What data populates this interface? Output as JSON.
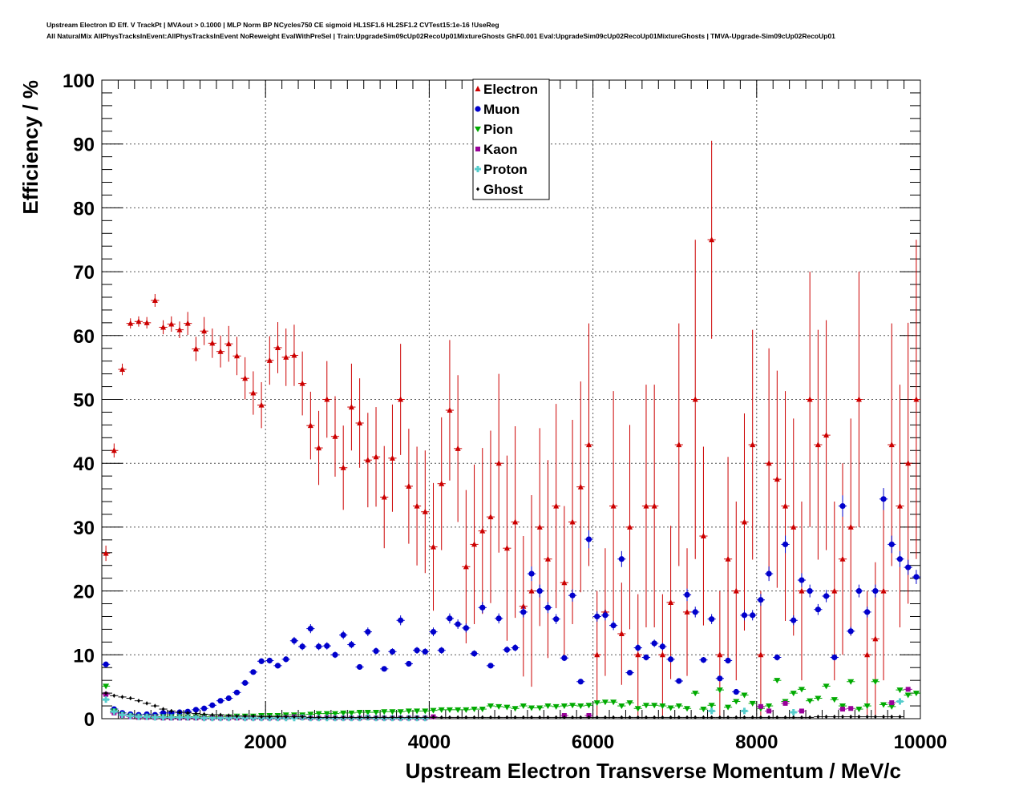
{
  "header": {
    "line1": "Upstream Electron ID Eff. V TrackPt | MVAout > 0.1000 | MLP Norm BP NCycles750 CE sigmoid HL1SF1.6 HL2SF1.2 CVTest15:1e-16 !UseReg",
    "line2": "All NaturalMix AllPhysTracksInEvent:AllPhysTracksInEvent NoReweight EvalWithPreSel | Train:UpgradeSim09cUp02RecoUp01MixtureGhosts GhF0.001 Eval:UpgradeSim09cUp02RecoUp01MixtureGhosts | TMVA-Upgrade-Sim09cUp02RecoUp01"
  },
  "chart_data": {
    "type": "scatter",
    "title": "",
    "xlabel": "Upstream Electron Transverse Momentum / MeV/c",
    "ylabel": "Efficiency / %",
    "xlim": [
      0,
      10000
    ],
    "ylim": [
      0,
      100
    ],
    "xticks": [
      2000,
      4000,
      6000,
      8000,
      10000
    ],
    "yticks": [
      0,
      10,
      20,
      30,
      40,
      50,
      60,
      70,
      80,
      90,
      100
    ],
    "grid": true,
    "legend_position": "top-center",
    "bin_width": 100,
    "series": [
      {
        "name": "Electron",
        "marker": "triangle-up",
        "color": "#cc0000",
        "x": [
          50,
          150,
          250,
          350,
          450,
          550,
          650,
          750,
          850,
          950,
          1050,
          1150,
          1250,
          1350,
          1450,
          1550,
          1650,
          1750,
          1850,
          1950,
          2050,
          2150,
          2250,
          2350,
          2450,
          2550,
          2650,
          2750,
          2850,
          2950,
          3050,
          3150,
          3250,
          3350,
          3450,
          3550,
          3650,
          3750,
          3850,
          3950,
          4050,
          4150,
          4250,
          4350,
          4450,
          4550,
          4650,
          4750,
          4850,
          4950,
          5050,
          5150,
          5250,
          5350,
          5450,
          5550,
          5650,
          5750,
          5850,
          5950,
          6050,
          6150,
          6250,
          6350,
          6450,
          6550,
          6650,
          6750,
          6850,
          6950,
          7050,
          7150,
          7250,
          7350,
          7450,
          7550,
          7650,
          7750,
          7850,
          7950,
          8050,
          8150,
          8250,
          8350,
          8450,
          8550,
          8650,
          8750,
          8850,
          8950,
          9050,
          9150,
          9250,
          9350,
          9450,
          9550,
          9650,
          9750,
          9850,
          9950
        ],
        "y": [
          25.9,
          42.0,
          54.7,
          61.9,
          62.2,
          62.0,
          65.5,
          61.3,
          61.8,
          60.9,
          61.9,
          57.9,
          60.7,
          58.8,
          57.5,
          58.7,
          56.8,
          53.3,
          51.0,
          49.1,
          56.1,
          58.1,
          56.6,
          56.9,
          52.5,
          45.9,
          42.4,
          50.0,
          44.2,
          39.3,
          48.8,
          46.3,
          40.5,
          41.0,
          34.7,
          40.8,
          50.0,
          36.4,
          33.3,
          32.4,
          26.9,
          36.8,
          48.3,
          42.3,
          23.8,
          27.3,
          29.4,
          31.6,
          40.0,
          26.7,
          30.8,
          17.6,
          20.0,
          30.0,
          25.0,
          33.3,
          21.3,
          30.8,
          36.3,
          42.9,
          10.0,
          16.7,
          33.3,
          13.3,
          30.0,
          10.0,
          33.3,
          33.3,
          10.0,
          18.2,
          42.9,
          16.7,
          50.0,
          28.6,
          75.0,
          10.0,
          25.0,
          20.0,
          30.8,
          42.9,
          10.0,
          40.0,
          37.5,
          33.3,
          30.0,
          20.0,
          50.0,
          42.9,
          44.4,
          20.0,
          25.0,
          30.0,
          50.0,
          10.0,
          12.5,
          20.0,
          42.9,
          33.3,
          40.0,
          50.0
        ],
        "err": [
          1.2,
          1.1,
          0.9,
          0.8,
          0.8,
          0.9,
          1.0,
          1.1,
          1.2,
          1.3,
          1.8,
          1.9,
          2.2,
          2.3,
          2.5,
          2.8,
          3.0,
          3.3,
          3.4,
          3.6,
          3.8,
          4.0,
          4.5,
          4.8,
          5.0,
          5.3,
          5.8,
          6.0,
          6.3,
          6.6,
          6.8,
          7.0,
          7.4,
          7.8,
          8.0,
          8.4,
          8.7,
          9.0,
          9.3,
          9.6,
          10.0,
          10.4,
          11.0,
          11.5,
          12.0,
          12.5,
          13.0,
          13.5,
          14.0,
          14.5,
          15.0,
          11.0,
          15.0,
          15.5,
          15.5,
          16.0,
          12.0,
          16.0,
          16.5,
          19.0,
          10.0,
          10.0,
          18.0,
          8.0,
          16.0,
          9.5,
          19.0,
          19.0,
          9.5,
          12.0,
          19.0,
          10.0,
          25.0,
          14.0,
          15.5,
          10.0,
          16.0,
          14.0,
          17.0,
          18.0,
          10.0,
          18.0,
          17.0,
          18.0,
          17.0,
          14.0,
          20.0,
          18.0,
          18.0,
          14.0,
          15.0,
          17.0,
          20.0,
          10.0,
          12.0,
          14.0,
          19.0,
          19.0,
          22.0,
          25.0
        ]
      },
      {
        "name": "Muon",
        "marker": "circle",
        "color": "#0000cc",
        "x": [
          50,
          150,
          250,
          350,
          450,
          550,
          650,
          750,
          850,
          950,
          1050,
          1150,
          1250,
          1350,
          1450,
          1550,
          1650,
          1750,
          1850,
          1950,
          2050,
          2150,
          2250,
          2350,
          2450,
          2550,
          2650,
          2750,
          2850,
          2950,
          3050,
          3150,
          3250,
          3350,
          3450,
          3550,
          3650,
          3750,
          3850,
          3950,
          4050,
          4150,
          4250,
          4350,
          4450,
          4550,
          4650,
          4750,
          4850,
          4950,
          5050,
          5150,
          5250,
          5350,
          5450,
          5550,
          5650,
          5750,
          5850,
          5950,
          6050,
          6150,
          6250,
          6350,
          6450,
          6550,
          6650,
          6750,
          6850,
          6950,
          7050,
          7150,
          7250,
          7350,
          7450,
          7550,
          7650,
          7750,
          7850,
          7950,
          8050,
          8150,
          8250,
          8350,
          8450,
          8550,
          8650,
          8750,
          8850,
          8950,
          9050,
          9150,
          9250,
          9350,
          9450,
          9550,
          9650,
          9750,
          9850,
          9950
        ],
        "y": [
          8.5,
          1.5,
          0.9,
          0.7,
          0.6,
          0.7,
          0.6,
          0.9,
          0.9,
          1.0,
          1.1,
          1.4,
          1.6,
          2.1,
          2.8,
          3.2,
          4.1,
          5.6,
          7.3,
          9.0,
          9.1,
          8.3,
          9.3,
          12.2,
          11.3,
          14.1,
          11.3,
          11.4,
          10.0,
          13.1,
          11.6,
          8.1,
          13.6,
          10.6,
          7.8,
          10.5,
          15.4,
          8.6,
          10.7,
          10.5,
          13.6,
          10.7,
          15.7,
          14.8,
          14.2,
          10.2,
          17.4,
          8.3,
          15.7,
          10.8,
          11.1,
          16.7,
          22.7,
          20.0,
          17.4,
          15.6,
          9.5,
          19.3,
          5.8,
          28.1,
          16.0,
          16.2,
          14.6,
          25.0,
          7.2,
          11.1,
          9.6,
          11.8,
          11.3,
          9.3,
          5.9,
          19.4,
          16.7,
          9.2,
          15.6,
          6.3,
          9.1,
          4.2,
          16.2,
          16.2,
          18.6,
          22.7,
          9.6,
          27.3,
          15.4,
          21.7,
          20.0,
          17.1,
          19.2,
          9.6,
          33.3,
          13.7,
          20.0,
          16.7,
          20.0,
          34.4,
          27.3,
          25.0,
          23.7,
          22.2
        ]
      },
      {
        "name": "Pion",
        "marker": "triangle-down",
        "color": "#00aa00",
        "x": [
          50,
          150,
          250,
          350,
          450,
          550,
          650,
          750,
          850,
          950,
          1050,
          1150,
          1250,
          1350,
          1450,
          1550,
          1650,
          1750,
          1850,
          1950,
          2050,
          2150,
          2250,
          2350,
          2450,
          2550,
          2650,
          2750,
          2850,
          2950,
          3050,
          3150,
          3250,
          3350,
          3450,
          3550,
          3650,
          3750,
          3850,
          3950,
          4050,
          4150,
          4250,
          4350,
          4450,
          4550,
          4650,
          4750,
          4850,
          4950,
          5050,
          5150,
          5250,
          5350,
          5450,
          5550,
          5650,
          5750,
          5850,
          5950,
          6050,
          6150,
          6250,
          6350,
          6450,
          6550,
          6650,
          6750,
          6850,
          6950,
          7050,
          7150,
          7250,
          7350,
          7450,
          7550,
          7650,
          7750,
          7850,
          7950,
          8050,
          8150,
          8250,
          8350,
          8450,
          8550,
          8650,
          8750,
          8850,
          8950,
          9050,
          9150,
          9250,
          9350,
          9450,
          9550,
          9650,
          9750,
          9850,
          9950
        ],
        "y": [
          5.1,
          1.2,
          0.6,
          0.4,
          0.3,
          0.3,
          0.3,
          0.3,
          0.3,
          0.3,
          0.3,
          0.3,
          0.3,
          0.3,
          0.3,
          0.3,
          0.4,
          0.4,
          0.4,
          0.5,
          0.5,
          0.5,
          0.6,
          0.6,
          0.6,
          0.7,
          0.8,
          0.8,
          0.8,
          0.9,
          0.9,
          1.0,
          1.0,
          1.0,
          1.1,
          1.1,
          1.1,
          1.2,
          1.2,
          1.2,
          1.3,
          1.4,
          1.4,
          1.4,
          1.4,
          1.5,
          1.5,
          2.0,
          1.9,
          1.8,
          1.6,
          2.0,
          1.7,
          1.7,
          2.0,
          1.9,
          2.0,
          2.1,
          2.0,
          2.1,
          2.5,
          2.6,
          2.6,
          2.0,
          2.5,
          1.6,
          2.1,
          2.1,
          2.0,
          1.7,
          2.0,
          1.6,
          4.0,
          1.5,
          2.1,
          4.5,
          1.8,
          2.7,
          3.7,
          2.4,
          1.6,
          2.0,
          6.0,
          2.7,
          4.0,
          4.6,
          2.8,
          3.2,
          5.1,
          3.0,
          2.0,
          5.8,
          1.5,
          2.0,
          5.8,
          2.2,
          1.9,
          4.5,
          3.7,
          4.0
        ]
      },
      {
        "name": "Kaon",
        "marker": "square",
        "color": "#990099",
        "x": [
          50,
          150,
          250,
          350,
          450,
          550,
          650,
          750,
          850,
          950,
          1050,
          1150,
          1250,
          1350,
          1450,
          1550,
          1650,
          1750,
          1850,
          1950,
          2050,
          2150,
          2250,
          2350,
          2450,
          2550,
          2650,
          2750,
          2850,
          2950,
          3050,
          3150,
          3250,
          3350,
          3450,
          3550,
          3650,
          3750,
          3850,
          3950,
          4050,
          5650,
          5950,
          8050,
          8150,
          8350,
          8550,
          9050,
          9150,
          9650,
          9850
        ],
        "y": [
          3.8,
          0.9,
          0.5,
          0.3,
          0.2,
          0.2,
          0.2,
          0.1,
          0.1,
          0.1,
          0.1,
          0.1,
          0.1,
          0.1,
          0.1,
          0.1,
          0.1,
          0.1,
          0.1,
          0.1,
          0.1,
          0.1,
          0.2,
          0.3,
          0.2,
          0.1,
          0.1,
          0.2,
          0.1,
          0.1,
          0.1,
          0.1,
          0.2,
          0.1,
          0.1,
          0.1,
          0.1,
          0.1,
          0.1,
          0.1,
          0.3,
          0.5,
          0.5,
          1.9,
          1.2,
          2.4,
          1.2,
          1.5,
          1.6,
          2.5,
          4.6
        ]
      },
      {
        "name": "Proton",
        "marker": "cross",
        "color": "#55cccc",
        "x": [
          50,
          150,
          250,
          350,
          450,
          550,
          650,
          750,
          850,
          950,
          1050,
          1150,
          1250,
          1350,
          1450,
          1550,
          1650,
          1750,
          1850,
          1950,
          2050,
          2150,
          2250,
          2350,
          2450,
          2550,
          2650,
          2750,
          2850,
          2950,
          3050,
          3150,
          3250,
          3350,
          3450,
          3550,
          3650,
          3750,
          3850,
          3950,
          7450,
          7850,
          8450,
          9750
        ],
        "y": [
          3.0,
          1.1,
          0.6,
          0.4,
          0.3,
          0.3,
          0.2,
          0.2,
          0.2,
          0.2,
          0.2,
          0.2,
          0.1,
          0.1,
          0.1,
          0.1,
          0.2,
          0.1,
          0.1,
          0.1,
          0.1,
          0.1,
          0.1,
          0.1,
          0.2,
          0.1,
          0.1,
          0.1,
          0.1,
          0.1,
          0.1,
          0.1,
          0.2,
          0.1,
          0.1,
          0.1,
          0.1,
          0.1,
          0.1,
          0.1,
          1.2,
          1.2,
          1.0,
          2.7
        ]
      },
      {
        "name": "Ghost",
        "marker": "diamond",
        "color": "#000000",
        "x": [
          50,
          150,
          250,
          350,
          450,
          550,
          650,
          750,
          850,
          950,
          1050,
          1150,
          1250,
          1350,
          1450,
          1550,
          1650,
          1750,
          1850,
          1950,
          2050,
          2150,
          2250,
          2350,
          2450,
          2550,
          2650,
          2750,
          2850,
          2950,
          3050,
          3150,
          3250,
          3350,
          3450,
          3550,
          3650,
          3750,
          3850,
          3950,
          4050,
          4150,
          4250,
          4350,
          4450,
          4550,
          4650,
          4750,
          4850,
          4950,
          5050,
          5150,
          5250,
          5350,
          5450,
          5550,
          5650,
          5750,
          5850,
          5950,
          6050,
          6150,
          6250,
          6350,
          6450,
          6550,
          6650,
          6750,
          6850,
          6950,
          7050,
          7150,
          7250,
          7350,
          7450,
          7550,
          7650,
          7750,
          7850,
          7950,
          8050,
          8150,
          8250,
          8350,
          8450,
          8550,
          8650,
          8750,
          8850,
          8950,
          9050,
          9150,
          9250,
          9350,
          9450,
          9550,
          9650,
          9750
        ],
        "y": [
          4.0,
          3.6,
          3.4,
          3.2,
          2.8,
          2.4,
          2.0,
          1.5,
          1.2,
          1.0,
          0.9,
          0.8,
          0.7,
          0.6,
          0.6,
          0.5,
          0.4,
          0.4,
          0.4,
          0.3,
          0.3,
          0.3,
          0.3,
          0.3,
          0.3,
          0.2,
          0.2,
          0.2,
          0.2,
          0.2,
          0.2,
          0.2,
          0.2,
          0.2,
          0.2,
          0.2,
          0.2,
          0.2,
          0.2,
          0.2,
          0.2,
          0.2,
          0.2,
          0.2,
          0.2,
          0.2,
          0.2,
          0.2,
          0.2,
          0.2,
          0.2,
          0.2,
          0.2,
          0.2,
          0.2,
          0.2,
          0.2,
          0.2,
          0.2,
          0.2,
          0.2,
          0.2,
          0.2,
          0.2,
          0.2,
          0.2,
          0.2,
          0.2,
          0.2,
          0.2,
          0.2,
          0.2,
          0.2,
          0.2,
          0.2,
          0.2,
          0.2,
          0.2,
          0.2,
          0.2,
          0.2,
          0.2,
          0.2,
          0.2,
          0.2,
          0.2,
          0.2,
          0.3,
          0.3,
          0.3,
          0.3,
          0.3,
          0.3,
          0.3,
          0.3,
          0.3,
          0.3,
          0.3
        ]
      }
    ]
  }
}
